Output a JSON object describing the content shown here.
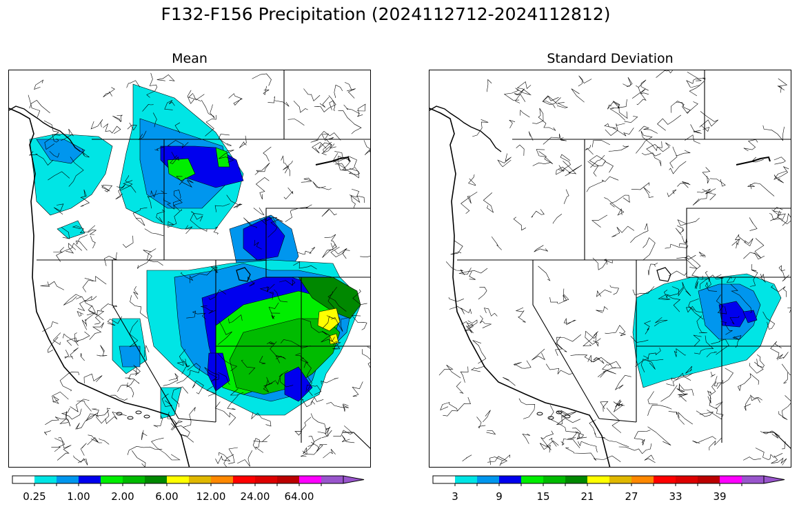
{
  "figure": {
    "title": "F132-F156 Precipitation (2024112712-2024112812)"
  },
  "palette": [
    "#ffffff",
    "#00e5e5",
    "#0096ee",
    "#0000ee",
    "#00ee00",
    "#00bb00",
    "#008800",
    "#ffff00",
    "#e0b800",
    "#ff8800",
    "#ff0000",
    "#dd0000",
    "#bb0000",
    "#ff00ff",
    "#9955cc"
  ],
  "panels": [
    {
      "id": "mean",
      "title": "Mean",
      "colorbar_labels": [
        "0.25",
        "1.00",
        "2.00",
        "6.00",
        "12.00",
        "24.00",
        "64.00"
      ],
      "label_bins": [
        1,
        3,
        5,
        7,
        9,
        11,
        13
      ]
    },
    {
      "id": "std",
      "title": "Standard Deviation",
      "colorbar_labels": [
        "3",
        "9",
        "15",
        "21",
        "27",
        "33",
        "39"
      ],
      "label_bins": [
        1,
        3,
        5,
        7,
        9,
        11,
        13
      ]
    }
  ],
  "icons": {
    "map": "basin-outline-map",
    "colorbar-arrow": "extend-triangle"
  }
}
